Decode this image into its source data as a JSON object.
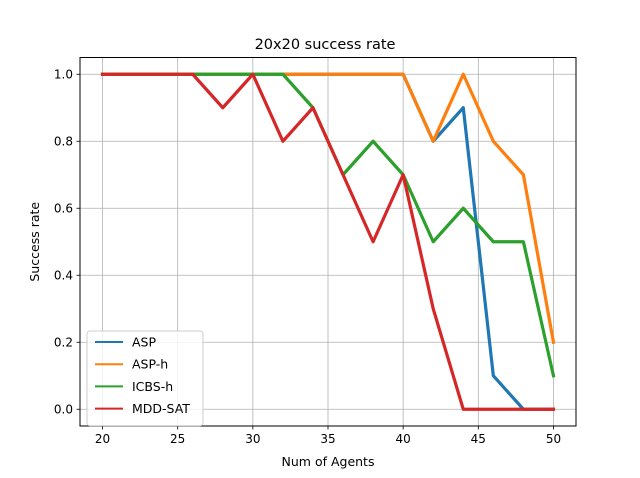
{
  "chart_data": {
    "type": "line",
    "title": "20x20 success rate",
    "xlabel": "Num of Agents",
    "ylabel": "Success rate",
    "xlim": [
      18.5,
      51.5
    ],
    "ylim": [
      -0.05,
      1.05
    ],
    "xticks": [
      20,
      25,
      30,
      35,
      40,
      45,
      50
    ],
    "yticks": [
      0.0,
      0.2,
      0.4,
      0.6,
      0.8,
      1.0
    ],
    "grid": true,
    "legend_position": "lower-left",
    "x": [
      20,
      22,
      24,
      26,
      28,
      30,
      32,
      34,
      36,
      38,
      40,
      42,
      44,
      46,
      48,
      50
    ],
    "series": [
      {
        "name": "ASP",
        "color": "#1f77b4",
        "values": [
          1.0,
          1.0,
          1.0,
          1.0,
          1.0,
          1.0,
          1.0,
          1.0,
          1.0,
          1.0,
          1.0,
          0.8,
          0.9,
          0.1,
          0.0,
          0.0
        ]
      },
      {
        "name": "ASP-h",
        "color": "#ff7f0e",
        "values": [
          1.0,
          1.0,
          1.0,
          1.0,
          1.0,
          1.0,
          1.0,
          1.0,
          1.0,
          1.0,
          1.0,
          0.8,
          1.0,
          0.8,
          0.7,
          0.2
        ]
      },
      {
        "name": "ICBS-h",
        "color": "#2ca02c",
        "values": [
          1.0,
          1.0,
          1.0,
          1.0,
          1.0,
          1.0,
          1.0,
          0.9,
          0.7,
          0.8,
          0.7,
          0.5,
          0.6,
          0.5,
          0.5,
          0.1
        ]
      },
      {
        "name": "MDD-SAT",
        "color": "#d62728",
        "values": [
          1.0,
          1.0,
          1.0,
          1.0,
          0.9,
          1.0,
          0.8,
          0.9,
          0.7,
          0.5,
          0.7,
          0.3,
          0.0,
          0.0,
          0.0,
          0.0
        ]
      }
    ]
  }
}
